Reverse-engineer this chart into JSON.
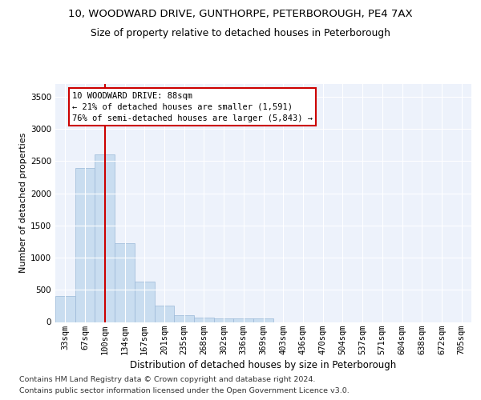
{
  "title1": "10, WOODWARD DRIVE, GUNTHORPE, PETERBOROUGH, PE4 7AX",
  "title2": "Size of property relative to detached houses in Peterborough",
  "xlabel": "Distribution of detached houses by size in Peterborough",
  "ylabel": "Number of detached properties",
  "footnote1": "Contains HM Land Registry data © Crown copyright and database right 2024.",
  "footnote2": "Contains public sector information licensed under the Open Government Licence v3.0.",
  "categories": [
    "33sqm",
    "67sqm",
    "100sqm",
    "134sqm",
    "167sqm",
    "201sqm",
    "235sqm",
    "268sqm",
    "302sqm",
    "336sqm",
    "369sqm",
    "403sqm",
    "436sqm",
    "470sqm",
    "504sqm",
    "537sqm",
    "571sqm",
    "604sqm",
    "638sqm",
    "672sqm",
    "705sqm"
  ],
  "values": [
    400,
    2400,
    2600,
    1220,
    630,
    250,
    110,
    70,
    60,
    55,
    50,
    0,
    0,
    0,
    0,
    0,
    0,
    0,
    0,
    0,
    0
  ],
  "bar_color": "#c9ddf0",
  "bar_edge_color": "#9ab8d8",
  "vline_color": "#cc0000",
  "vline_x": 2.0,
  "annotation_text": "10 WOODWARD DRIVE: 88sqm\n← 21% of detached houses are smaller (1,591)\n76% of semi-detached houses are larger (5,843) →",
  "annotation_box_bg": "#ffffff",
  "annotation_box_edge": "#cc0000",
  "ylim": [
    0,
    3700
  ],
  "yticks": [
    0,
    500,
    1000,
    1500,
    2000,
    2500,
    3000,
    3500
  ],
  "bg_color": "#edf2fb",
  "fig_bg": "#ffffff",
  "title1_fontsize": 9.5,
  "title2_fontsize": 8.8,
  "xlabel_fontsize": 8.5,
  "ylabel_fontsize": 8.0,
  "tick_fontsize": 7.5,
  "annot_fontsize": 7.5,
  "footnote_fontsize": 6.8
}
